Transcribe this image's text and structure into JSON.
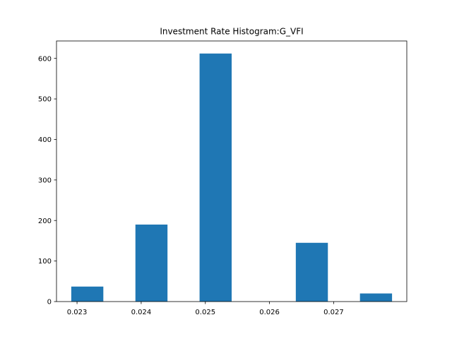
{
  "chart_data": {
    "type": "bar",
    "title": "Investment Rate Histogram:G_VFI",
    "xlabel": "",
    "ylabel": "",
    "bins": [
      {
        "x0": 0.02291,
        "x1": 0.02341,
        "value": 37
      },
      {
        "x0": 0.02341,
        "x1": 0.02391,
        "value": 0
      },
      {
        "x0": 0.02391,
        "x1": 0.02441,
        "value": 190
      },
      {
        "x0": 0.02441,
        "x1": 0.02491,
        "value": 0
      },
      {
        "x0": 0.02491,
        "x1": 0.02541,
        "value": 612
      },
      {
        "x0": 0.02541,
        "x1": 0.02591,
        "value": 0
      },
      {
        "x0": 0.02591,
        "x1": 0.02641,
        "value": 0
      },
      {
        "x0": 0.02641,
        "x1": 0.02691,
        "value": 145
      },
      {
        "x0": 0.02691,
        "x1": 0.02741,
        "value": 0
      },
      {
        "x0": 0.02741,
        "x1": 0.02791,
        "value": 20
      }
    ],
    "xlim": [
      0.02268,
      0.02814
    ],
    "ylim": [
      0,
      643
    ],
    "xticks": [
      {
        "value": 0.023,
        "label": "0.023"
      },
      {
        "value": 0.024,
        "label": "0.024"
      },
      {
        "value": 0.025,
        "label": "0.025"
      },
      {
        "value": 0.026,
        "label": "0.026"
      },
      {
        "value": 0.027,
        "label": "0.027"
      }
    ],
    "yticks": [
      {
        "value": 0,
        "label": "0"
      },
      {
        "value": 100,
        "label": "100"
      },
      {
        "value": 200,
        "label": "200"
      },
      {
        "value": 300,
        "label": "300"
      },
      {
        "value": 400,
        "label": "400"
      },
      {
        "value": 500,
        "label": "500"
      },
      {
        "value": 600,
        "label": "600"
      }
    ],
    "bar_color": "#1f77b4",
    "grid": false,
    "legend": "none"
  }
}
